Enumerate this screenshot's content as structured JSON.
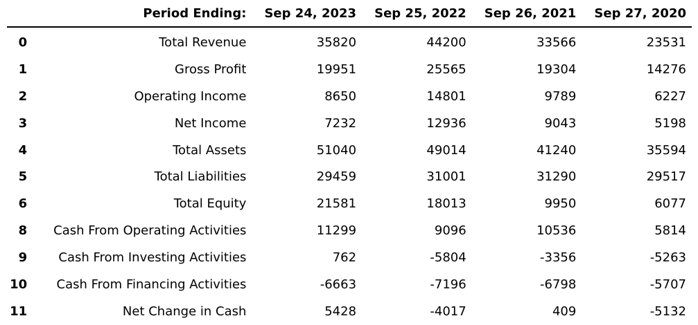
{
  "table": {
    "header_label": "Period Ending:",
    "periods": [
      "Sep 24, 2023",
      "Sep 25, 2022",
      "Sep 26, 2021",
      "Sep 27, 2020"
    ],
    "rows": [
      {
        "index": "0",
        "label": "Total Revenue",
        "values": [
          "35820",
          "44200",
          "33566",
          "23531"
        ]
      },
      {
        "index": "1",
        "label": "Gross Profit",
        "values": [
          "19951",
          "25565",
          "19304",
          "14276"
        ]
      },
      {
        "index": "2",
        "label": "Operating Income",
        "values": [
          "8650",
          "14801",
          "9789",
          "6227"
        ]
      },
      {
        "index": "3",
        "label": "Net Income",
        "values": [
          "7232",
          "12936",
          "9043",
          "5198"
        ]
      },
      {
        "index": "4",
        "label": "Total Assets",
        "values": [
          "51040",
          "49014",
          "41240",
          "35594"
        ]
      },
      {
        "index": "5",
        "label": "Total Liabilities",
        "values": [
          "29459",
          "31001",
          "31290",
          "29517"
        ]
      },
      {
        "index": "6",
        "label": "Total Equity",
        "values": [
          "21581",
          "18013",
          "9950",
          "6077"
        ]
      },
      {
        "index": "8",
        "label": "Cash From Operating Activities",
        "values": [
          "11299",
          "9096",
          "10536",
          "5814"
        ]
      },
      {
        "index": "9",
        "label": "Cash From Investing Activities",
        "values": [
          "762",
          "-5804",
          "-3356",
          "-5263"
        ]
      },
      {
        "index": "10",
        "label": "Cash From Financing Activities",
        "values": [
          "-6663",
          "-7196",
          "-6798",
          "-5707"
        ]
      },
      {
        "index": "11",
        "label": "Net Change in Cash",
        "values": [
          "5428",
          "-4017",
          "409",
          "-5132"
        ]
      }
    ]
  }
}
